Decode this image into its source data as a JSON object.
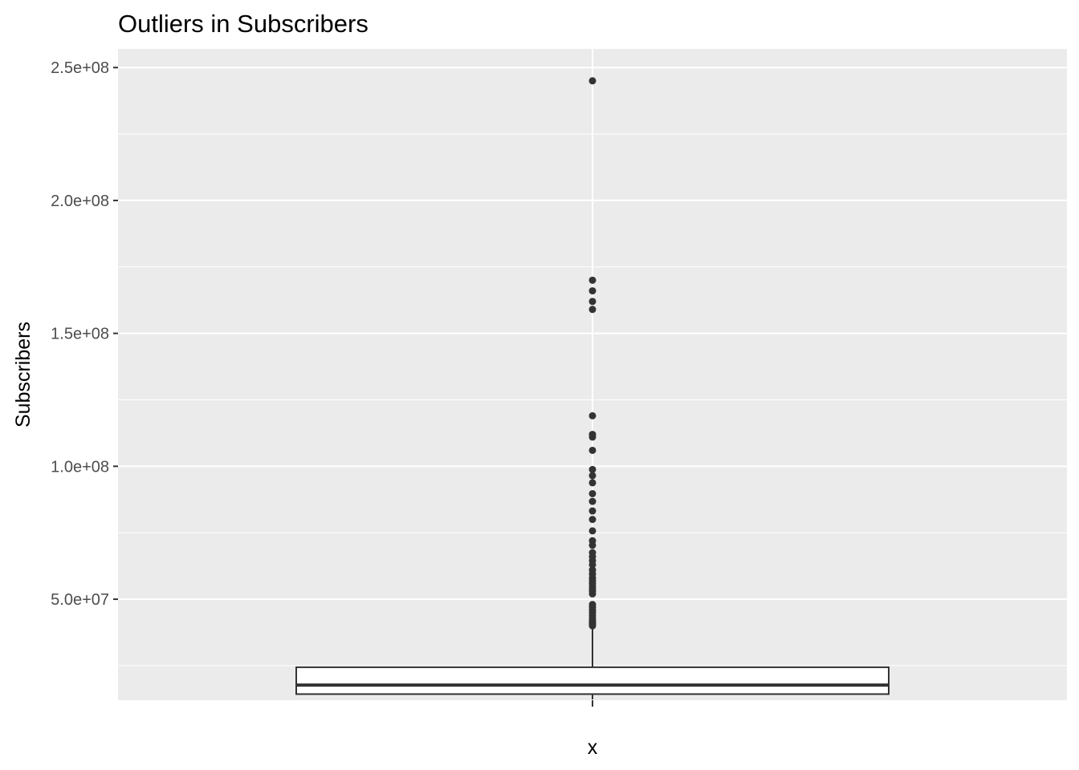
{
  "chart_data": {
    "type": "boxplot",
    "title": "Outliers in Subscribers",
    "xlabel": "",
    "ylabel": "Subscribers",
    "x_tick_labels": [
      "x"
    ],
    "y_tick_labels": [
      "5.0e+07",
      "1.0e+08",
      "1.5e+08",
      "2.0e+08",
      "2.5e+08"
    ],
    "y_ticks": [
      50000000,
      100000000,
      150000000,
      200000000,
      250000000
    ],
    "ylim": [
      12000000,
      257000000
    ],
    "grid": true,
    "box": {
      "category": "x",
      "whisker_low": 12300000,
      "q1": 14300000,
      "median": 17700000,
      "q3": 24400000,
      "whisker_high": 39800000
    },
    "outliers": [
      245000000,
      170000000,
      166000000,
      162000000,
      159000000,
      119000000,
      112000000,
      111000000,
      106000000,
      98800000,
      96500000,
      93800000,
      89700000,
      86800000,
      83200000,
      80000000,
      75700000,
      72000000,
      70300000,
      67500000,
      66000000,
      64500000,
      63000000,
      61000000,
      59500000,
      58000000,
      57000000,
      56000000,
      55000000,
      54000000,
      53000000,
      52000000,
      48000000,
      47000000,
      46000000,
      45000000,
      44000000,
      43000000,
      42000000,
      41500000,
      41000000,
      40500000,
      40000000
    ],
    "colors": {
      "panel_background": "#ebebeb",
      "grid": "#ffffff",
      "box_fill": "#ffffff",
      "box_line": "#333333",
      "point": "#333333"
    }
  }
}
